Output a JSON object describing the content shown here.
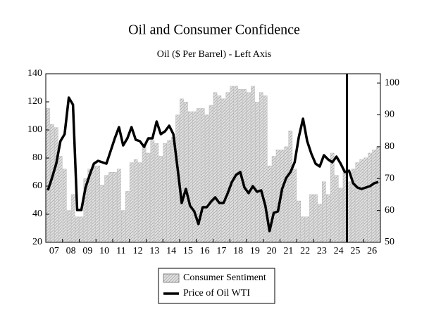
{
  "chart_data": {
    "type": "bar",
    "title": "Oil and Consumer Confidence",
    "subtitle": "Oil ($ Per Barrel) - Left Axis",
    "categories": [
      null,
      "07",
      null,
      null,
      null,
      "08",
      null,
      null,
      null,
      "09",
      null,
      null,
      null,
      "10",
      null,
      null,
      null,
      "11",
      null,
      null,
      null,
      "12",
      null,
      null,
      null,
      "13",
      null,
      null,
      null,
      "14",
      null,
      null,
      null,
      "15",
      null,
      null,
      null,
      "16",
      null,
      null,
      null,
      "17",
      null,
      null,
      null,
      "18",
      null,
      null,
      null,
      "19",
      null,
      null,
      null,
      "20",
      null,
      null,
      null,
      "21",
      null,
      null,
      null,
      "22",
      null,
      null,
      null,
      "23",
      null,
      null,
      null,
      "24",
      null,
      null,
      null,
      "25",
      null,
      null,
      null,
      "26",
      null,
      null
    ],
    "series": [
      {
        "name": "Consumer Sentiment",
        "type": "bar",
        "axis": "y2",
        "color": "#c8c8c8",
        "values": [
          92,
          87,
          86,
          77,
          73,
          60,
          65,
          58,
          58,
          70,
          73,
          74,
          74,
          68,
          71,
          72,
          72,
          73,
          60,
          66,
          75,
          76,
          75,
          80,
          78,
          82,
          81,
          77,
          81,
          82,
          83,
          90,
          95,
          94,
          91,
          91,
          92,
          92,
          90,
          93,
          97,
          96,
          95,
          97,
          99,
          99,
          98,
          98,
          97,
          99,
          94,
          97,
          96,
          74,
          77,
          79,
          79,
          80,
          85,
          73,
          63,
          58,
          58,
          65,
          65,
          62,
          69,
          65,
          78,
          71,
          67,
          73,
          69,
          73,
          75,
          76,
          76.5,
          78,
          79,
          80
        ]
      },
      {
        "name": "Price of Oil WTI",
        "type": "line",
        "color": "#000000",
        "values": [
          57,
          66,
          76,
          92,
          97,
          123,
          118,
          43,
          43,
          59,
          68,
          76,
          78,
          77,
          76,
          85,
          94,
          102,
          89,
          94,
          102,
          93,
          92,
          88,
          94,
          94,
          106,
          97,
          99,
          103,
          97,
          73,
          48,
          58,
          46,
          42,
          33,
          45,
          45,
          49,
          52,
          48,
          48,
          55,
          63,
          68,
          70,
          59,
          55,
          60,
          56,
          57,
          46,
          28,
          41,
          42,
          58,
          66,
          70,
          77,
          95,
          108,
          92,
          83,
          76,
          74,
          82,
          79,
          77,
          81,
          76,
          70,
          71,
          62,
          59,
          58,
          59,
          60,
          62,
          63
        ]
      }
    ],
    "ylim": [
      20,
      140
    ],
    "yticks": [
      20,
      40,
      60,
      80,
      100,
      120,
      140
    ],
    "y2lim": [
      50,
      102.9
    ],
    "y2ticks": [
      50,
      60,
      70,
      80,
      90,
      100
    ],
    "legend": "bottom"
  }
}
